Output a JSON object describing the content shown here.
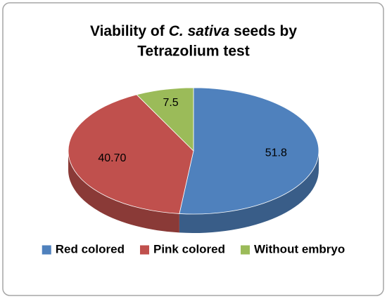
{
  "chart_data": {
    "type": "pie3d",
    "title_parts": [
      "Viability of",
      "C. sativa",
      "seeds by",
      "Tetrazolium test"
    ],
    "categories": [
      "Red colored",
      "Pink colored",
      "Without embryo"
    ],
    "values": [
      51.8,
      40.7,
      7.5
    ],
    "value_labels": [
      "51.8",
      "40.70",
      "7.5"
    ],
    "colors": [
      "#4f81bd",
      "#c0504d",
      "#9bbb59"
    ],
    "legend": "bottom"
  }
}
